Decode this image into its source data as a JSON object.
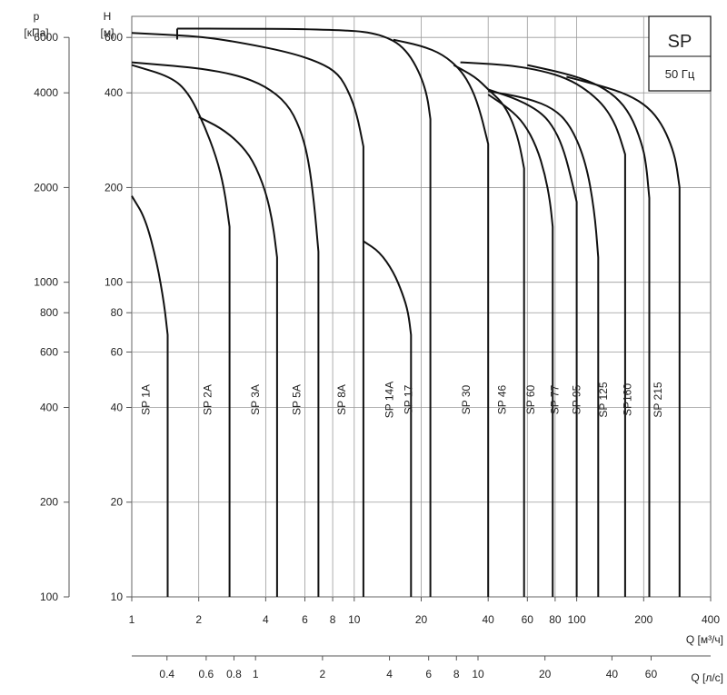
{
  "chart_data": {
    "type": "line",
    "x_scale": "log",
    "y_scale": "log",
    "xlim": [
      1,
      400
    ],
    "ylim": [
      10,
      700
    ],
    "grid": true,
    "legend_box": {
      "title": "SP",
      "subtitle": "50 Гц",
      "placement": "top-right"
    },
    "axes": {
      "left_outer": {
        "label_lines": [
          "p",
          "[кПа]"
        ],
        "ticks": [
          "6000",
          "4000",
          "2000",
          "1000",
          "800",
          "600",
          "400",
          "200",
          "100"
        ]
      },
      "left_inner": {
        "label_lines": [
          "H",
          "[м]"
        ],
        "ticks": [
          "600",
          "400",
          "200",
          "100",
          "80",
          "60",
          "40",
          "20",
          "10"
        ]
      },
      "bottom": {
        "label": "Q [м³/ч]",
        "ticks": [
          "1",
          "2",
          "4",
          "6",
          "8",
          "10",
          "20",
          "40",
          "60",
          "80",
          "100",
          "200",
          "400"
        ]
      },
      "bottom_second": {
        "label": "Q [л/с]",
        "ticks": [
          "0.4",
          "0.6",
          "0.8",
          "1",
          "2",
          "4",
          "6",
          "8",
          "10",
          "20",
          "40",
          "60"
        ]
      }
    },
    "series": [
      {
        "name": "SP 1A",
        "q_max": 1.45,
        "points": [
          [
            1,
            188
          ],
          [
            1.15,
            160
          ],
          [
            1.3,
            115
          ],
          [
            1.4,
            85
          ],
          [
            1.45,
            68
          ]
        ]
      },
      {
        "name": "SP 2A",
        "q_max": 2.75,
        "points": [
          [
            1,
            490
          ],
          [
            1.5,
            450
          ],
          [
            1.8,
            400
          ],
          [
            2.1,
            320
          ],
          [
            2.4,
            250
          ],
          [
            2.6,
            200
          ],
          [
            2.75,
            150
          ]
        ]
      },
      {
        "name": "SP 3A",
        "q_max": 4.5,
        "points": [
          [
            2,
            335
          ],
          [
            2.5,
            310
          ],
          [
            3,
            280
          ],
          [
            3.5,
            245
          ],
          [
            4,
            195
          ],
          [
            4.3,
            155
          ],
          [
            4.5,
            120
          ]
        ]
      },
      {
        "name": "SP 5A",
        "q_max": 6.9,
        "points": [
          [
            1,
            500
          ],
          [
            2,
            480
          ],
          [
            3,
            455
          ],
          [
            4,
            420
          ],
          [
            5,
            370
          ],
          [
            5.7,
            310
          ],
          [
            6.2,
            250
          ],
          [
            6.6,
            180
          ],
          [
            6.9,
            125
          ]
        ]
      },
      {
        "name": "SP 8A",
        "q_max": 11,
        "points": [
          [
            1,
            620
          ],
          [
            2,
            605
          ],
          [
            3,
            580
          ],
          [
            5,
            540
          ],
          [
            7,
            500
          ],
          [
            8.5,
            460
          ],
          [
            9.5,
            400
          ],
          [
            10.3,
            340
          ],
          [
            11,
            270
          ]
        ]
      },
      {
        "name": "SP 14A",
        "q_max": 18,
        "points": [
          [
            11,
            135
          ],
          [
            13,
            125
          ],
          [
            15,
            108
          ],
          [
            16.5,
            92
          ],
          [
            17.5,
            80
          ],
          [
            18,
            68
          ]
        ]
      },
      {
        "name": "SP 17",
        "q_max": 22,
        "points": [
          [
            1.6,
            640
          ],
          [
            3,
            640
          ],
          [
            6,
            638
          ],
          [
            10,
            630
          ],
          [
            12,
            620
          ],
          [
            14,
            600
          ],
          [
            16,
            570
          ],
          [
            18,
            520
          ],
          [
            20,
            450
          ],
          [
            21.3,
            390
          ],
          [
            22,
            330
          ]
        ]
      },
      {
        "name": "SP 30",
        "q_max": 40,
        "points": [
          [
            15,
            590
          ],
          [
            20,
            565
          ],
          [
            25,
            530
          ],
          [
            30,
            475
          ],
          [
            34,
            410
          ],
          [
            37,
            345
          ],
          [
            40,
            275
          ]
        ]
      },
      {
        "name": "SP 46",
        "q_max": 58,
        "points": [
          [
            28,
            490
          ],
          [
            35,
            450
          ],
          [
            40,
            410
          ],
          [
            46,
            375
          ],
          [
            51,
            330
          ],
          [
            55,
            280
          ],
          [
            58,
            230
          ]
        ]
      },
      {
        "name": "SP 60",
        "q_max": 78,
        "points": [
          [
            40,
            395
          ],
          [
            50,
            355
          ],
          [
            58,
            320
          ],
          [
            66,
            270
          ],
          [
            72,
            220
          ],
          [
            76,
            180
          ],
          [
            78,
            150
          ]
        ]
      },
      {
        "name": "SP 77",
        "q_max": 100,
        "points": [
          [
            40,
            410
          ],
          [
            55,
            380
          ],
          [
            70,
            345
          ],
          [
            80,
            305
          ],
          [
            88,
            260
          ],
          [
            95,
            210
          ],
          [
            100,
            180
          ]
        ]
      },
      {
        "name": "SP 95",
        "q_max": 125,
        "points": [
          [
            40,
            405
          ],
          [
            60,
            385
          ],
          [
            80,
            355
          ],
          [
            95,
            310
          ],
          [
            110,
            240
          ],
          [
            120,
            170
          ],
          [
            125,
            120
          ]
        ]
      },
      {
        "name": "SP 125",
        "q_max": 165,
        "points": [
          [
            30,
            500
          ],
          [
            50,
            490
          ],
          [
            70,
            470
          ],
          [
            90,
            445
          ],
          [
            110,
            410
          ],
          [
            130,
            370
          ],
          [
            145,
            330
          ],
          [
            155,
            295
          ],
          [
            165,
            255
          ]
        ]
      },
      {
        "name": "SP160",
        "q_max": 212,
        "points": [
          [
            60,
            490
          ],
          [
            90,
            460
          ],
          [
            120,
            430
          ],
          [
            150,
            390
          ],
          [
            175,
            340
          ],
          [
            195,
            280
          ],
          [
            205,
            240
          ],
          [
            212,
            185
          ]
        ]
      },
      {
        "name": "SP 215",
        "q_max": 290,
        "points": [
          [
            90,
            450
          ],
          [
            130,
            420
          ],
          [
            170,
            395
          ],
          [
            210,
            360
          ],
          [
            240,
            320
          ],
          [
            265,
            275
          ],
          [
            280,
            240
          ],
          [
            290,
            200
          ]
        ]
      }
    ]
  }
}
